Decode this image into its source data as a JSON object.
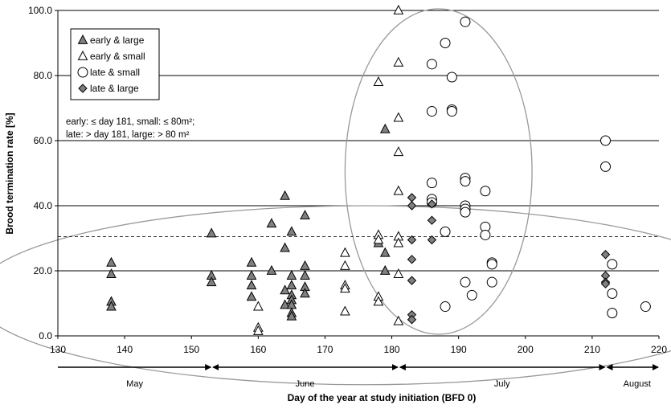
{
  "chart_data": {
    "type": "scatter",
    "xlabel": "Day of the year at study initiation (BFD 0)",
    "ylabel": "Brood termination rate [%]",
    "xlim": [
      130,
      220
    ],
    "ylim": [
      0,
      100
    ],
    "xticks": [
      "130",
      "140",
      "150",
      "160",
      "170",
      "180",
      "190",
      "200",
      "210",
      "220"
    ],
    "yticks": [
      "0.0",
      "20.0",
      "40.0",
      "60.0",
      "80.0",
      "100.0"
    ],
    "grid": "horizontal",
    "reference_line_y": 30.5,
    "legend_position": "top-left",
    "note_lines": [
      "early: ≤ day 181, small: ≤ 80m²;",
      "late: > day 181, large: > 80 m²"
    ],
    "months": [
      {
        "label": "May",
        "start": 130,
        "end": 153
      },
      {
        "label": "June",
        "start": 153,
        "end": 181
      },
      {
        "label": "July",
        "start": 181,
        "end": 212
      },
      {
        "label": "August",
        "start": 212,
        "end": 220
      }
    ],
    "ellipses": [
      {
        "cx": 176,
        "cy": 12.5,
        "rx": 58.5,
        "ry": 27.5
      },
      {
        "cx": 187,
        "cy": 50.5,
        "rx": 14,
        "ry": 50
      }
    ],
    "series": [
      {
        "name": "early & large",
        "marker": "triangle-filled",
        "points": [
          [
            138,
            22.5
          ],
          [
            138,
            19
          ],
          [
            138,
            10.5
          ],
          [
            138,
            9
          ],
          [
            153,
            31.5
          ],
          [
            153,
            18.5
          ],
          [
            153,
            16.5
          ],
          [
            159,
            22.5
          ],
          [
            159,
            18.5
          ],
          [
            159,
            15.5
          ],
          [
            159,
            12
          ],
          [
            162,
            34.5
          ],
          [
            162,
            20
          ],
          [
            164,
            43
          ],
          [
            164,
            27
          ],
          [
            164,
            14
          ],
          [
            164,
            9.5
          ],
          [
            165,
            32
          ],
          [
            165,
            18.5
          ],
          [
            165,
            15.5
          ],
          [
            165,
            12.5
          ],
          [
            165,
            11
          ],
          [
            165,
            9.5
          ],
          [
            165,
            7
          ],
          [
            165,
            6
          ],
          [
            167,
            37
          ],
          [
            167,
            21.5
          ],
          [
            167,
            18.5
          ],
          [
            167,
            15
          ],
          [
            167,
            13
          ],
          [
            178,
            28.5
          ],
          [
            179,
            63.5
          ],
          [
            179,
            25.5
          ],
          [
            179,
            20
          ]
        ]
      },
      {
        "name": "early & small",
        "marker": "triangle-open",
        "points": [
          [
            160,
            9
          ],
          [
            160,
            2.5
          ],
          [
            160,
            1.5
          ],
          [
            173,
            25.5
          ],
          [
            173,
            21.5
          ],
          [
            173,
            15.5
          ],
          [
            173,
            14.5
          ],
          [
            173,
            7.5
          ],
          [
            178,
            78
          ],
          [
            178,
            31
          ],
          [
            178,
            29.5
          ],
          [
            178,
            12
          ],
          [
            178,
            10.5
          ],
          [
            181,
            100
          ],
          [
            181,
            84
          ],
          [
            181,
            67
          ],
          [
            181,
            56.5
          ],
          [
            181,
            44.5
          ],
          [
            181,
            30.5
          ],
          [
            181,
            28.5
          ],
          [
            181,
            19
          ],
          [
            181,
            4.5
          ]
        ]
      },
      {
        "name": "late & small",
        "marker": "circle-open",
        "points": [
          [
            186,
            83.5
          ],
          [
            186,
            69
          ],
          [
            186,
            47
          ],
          [
            186,
            42
          ],
          [
            186,
            41
          ],
          [
            188,
            90
          ],
          [
            188,
            32
          ],
          [
            188,
            9
          ],
          [
            189,
            79.5
          ],
          [
            189,
            69.5
          ],
          [
            189,
            69
          ],
          [
            191,
            96.5
          ],
          [
            191,
            48.5
          ],
          [
            191,
            47.5
          ],
          [
            191,
            40
          ],
          [
            191,
            39
          ],
          [
            191,
            38
          ],
          [
            191,
            16.5
          ],
          [
            192,
            12.5
          ],
          [
            194,
            44.5
          ],
          [
            194,
            33.5
          ],
          [
            194,
            31
          ],
          [
            195,
            22.5
          ],
          [
            195,
            22
          ],
          [
            195,
            16.5
          ],
          [
            212,
            60
          ],
          [
            212,
            52
          ],
          [
            213,
            22
          ],
          [
            213,
            13
          ],
          [
            213,
            7
          ],
          [
            218,
            9
          ]
        ]
      },
      {
        "name": "late  & large",
        "marker": "diamond-filled",
        "points": [
          [
            183,
            42.5
          ],
          [
            183,
            40
          ],
          [
            183,
            29.5
          ],
          [
            183,
            23.5
          ],
          [
            183,
            17
          ],
          [
            183,
            6.5
          ],
          [
            183,
            5
          ],
          [
            186,
            40.5
          ],
          [
            186,
            35.5
          ],
          [
            186,
            29.5
          ],
          [
            212,
            25
          ],
          [
            212,
            18.5
          ],
          [
            212,
            16.5
          ],
          [
            212,
            16
          ]
        ]
      }
    ]
  }
}
